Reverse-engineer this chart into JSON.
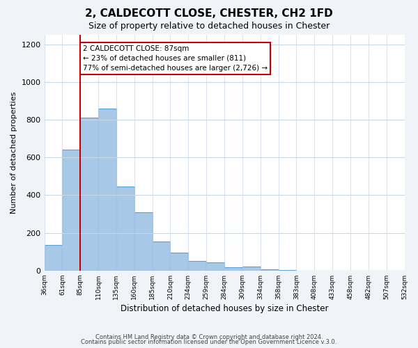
{
  "title": "2, CALDECOTT CLOSE, CHESTER, CH2 1FD",
  "subtitle": "Size of property relative to detached houses in Chester",
  "xlabel": "Distribution of detached houses by size in Chester",
  "ylabel": "Number of detached properties",
  "footer_lines": [
    "Contains HM Land Registry data © Crown copyright and database right 2024.",
    "Contains public sector information licensed under the Open Government Licence v.3.0."
  ],
  "bin_labels": [
    "36sqm",
    "61sqm",
    "85sqm",
    "110sqm",
    "135sqm",
    "160sqm",
    "185sqm",
    "210sqm",
    "234sqm",
    "259sqm",
    "284sqm",
    "309sqm",
    "334sqm",
    "358sqm",
    "383sqm",
    "408sqm",
    "433sqm",
    "458sqm",
    "482sqm",
    "507sqm",
    "532sqm"
  ],
  "bar_values": [
    135,
    640,
    810,
    860,
    445,
    310,
    155,
    97,
    52,
    42,
    18,
    22,
    8,
    3,
    0,
    0,
    0,
    0,
    0,
    0
  ],
  "bar_color": "#a8c8e8",
  "bar_edge_color": "#5a9fd4",
  "vline_x": 2,
  "vline_color": "#cc0000",
  "annotation_text": "2 CALDECOTT CLOSE: 87sqm\n← 23% of detached houses are smaller (811)\n77% of semi-detached houses are larger (2,726) →",
  "annotation_box_edge": "#cc0000",
  "ylim": [
    0,
    1250
  ],
  "yticks": [
    0,
    200,
    400,
    600,
    800,
    1000,
    1200
  ],
  "background_color": "#f0f4f8",
  "plot_bg_color": "#ffffff",
  "grid_color": "#c8d8e8"
}
